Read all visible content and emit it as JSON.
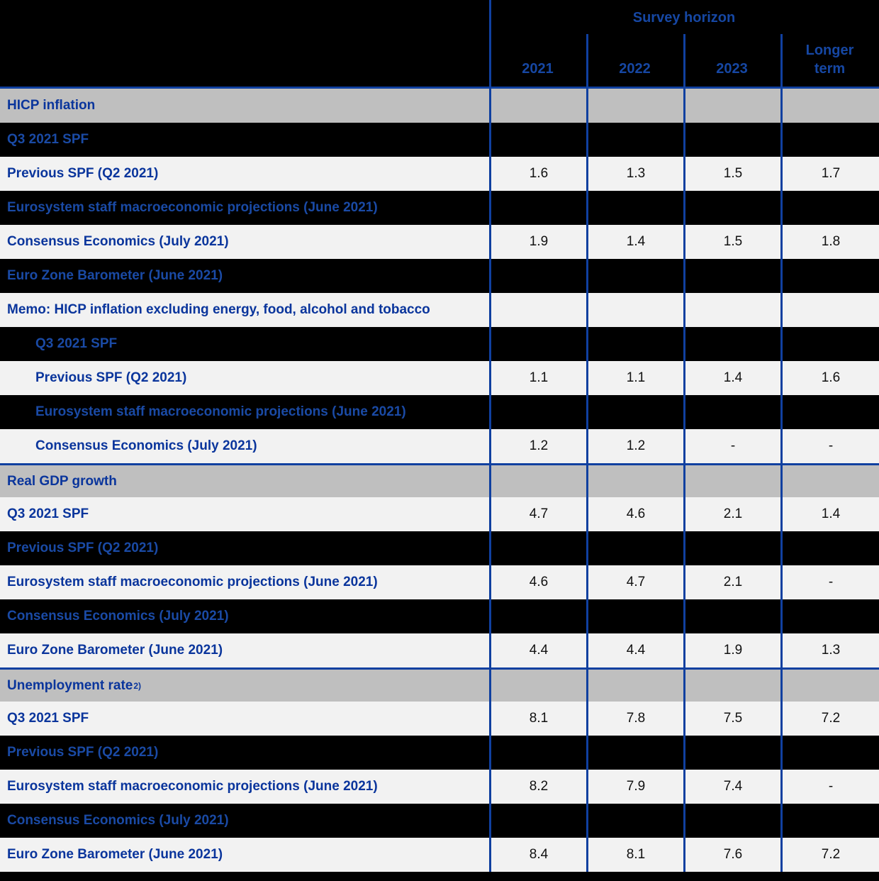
{
  "header": {
    "group_label": "Survey horizon",
    "columns": [
      "2021",
      "2022",
      "2023",
      "Longer\nterm"
    ]
  },
  "rows": [
    {
      "label": "HICP inflation",
      "bg": "gray",
      "section": true,
      "indent": false,
      "values": [
        "",
        "",
        "",
        ""
      ]
    },
    {
      "label": "Q3 2021 SPF",
      "bg": "black",
      "section": false,
      "indent": false,
      "values": [
        "",
        "",
        "",
        ""
      ]
    },
    {
      "label": "Previous SPF (Q2 2021)",
      "bg": "light",
      "section": false,
      "indent": false,
      "values": [
        "1.6",
        "1.3",
        "1.5",
        "1.7"
      ]
    },
    {
      "label": "Eurosystem staff macroeconomic projections (June 2021)",
      "bg": "black",
      "section": false,
      "indent": false,
      "values": [
        "",
        "",
        "",
        ""
      ]
    },
    {
      "label": "Consensus Economics (July 2021)",
      "bg": "light",
      "section": false,
      "indent": false,
      "values": [
        "1.9",
        "1.4",
        "1.5",
        "1.8"
      ]
    },
    {
      "label": "Euro Zone Barometer (June 2021)",
      "bg": "black",
      "section": false,
      "indent": false,
      "values": [
        "",
        "",
        "",
        ""
      ]
    },
    {
      "label": "Memo: HICP inflation excluding energy, food, alcohol and tobacco",
      "bg": "light",
      "section": false,
      "indent": false,
      "values": [
        "",
        "",
        "",
        ""
      ]
    },
    {
      "label": "Q3 2021 SPF",
      "bg": "black",
      "section": false,
      "indent": true,
      "values": [
        "",
        "",
        "",
        ""
      ]
    },
    {
      "label": "Previous SPF (Q2 2021)",
      "bg": "light",
      "section": false,
      "indent": true,
      "values": [
        "1.1",
        "1.1",
        "1.4",
        "1.6"
      ]
    },
    {
      "label": "Eurosystem staff macroeconomic projections (June 2021)",
      "bg": "black",
      "section": false,
      "indent": true,
      "values": [
        "",
        "",
        "",
        ""
      ]
    },
    {
      "label": "Consensus Economics (July 2021)",
      "bg": "light",
      "section": false,
      "indent": true,
      "values": [
        "1.2",
        "1.2",
        "-",
        "-"
      ]
    },
    {
      "label": "Real GDP growth",
      "bg": "gray",
      "section": true,
      "topline": true,
      "indent": false,
      "values": [
        "",
        "",
        "",
        ""
      ]
    },
    {
      "label": "Q3 2021 SPF",
      "bg": "light",
      "section": false,
      "indent": false,
      "values": [
        "4.7",
        "4.6",
        "2.1",
        "1.4"
      ]
    },
    {
      "label": "Previous SPF (Q2 2021)",
      "bg": "black",
      "section": false,
      "indent": false,
      "values": [
        "",
        "",
        "",
        ""
      ]
    },
    {
      "label": "Eurosystem staff macroeconomic projections (June 2021)",
      "bg": "light",
      "section": false,
      "indent": false,
      "values": [
        "4.6",
        "4.7",
        "2.1",
        "-"
      ]
    },
    {
      "label": "Consensus Economics (July 2021)",
      "bg": "black",
      "section": false,
      "indent": false,
      "values": [
        "",
        "",
        "",
        ""
      ]
    },
    {
      "label": "Euro Zone Barometer (June 2021)",
      "bg": "light",
      "section": false,
      "indent": false,
      "values": [
        "4.4",
        "4.4",
        "1.9",
        "1.3"
      ]
    },
    {
      "label": "Unemployment rate",
      "sup": "2)",
      "bg": "gray",
      "section": true,
      "topline": true,
      "indent": false,
      "values": [
        "",
        "",
        "",
        ""
      ]
    },
    {
      "label": "Q3 2021 SPF",
      "bg": "light",
      "section": false,
      "indent": false,
      "values": [
        "8.1",
        "7.8",
        "7.5",
        "7.2"
      ]
    },
    {
      "label": "Previous SPF (Q2 2021)",
      "bg": "black",
      "section": false,
      "indent": false,
      "values": [
        "",
        "",
        "",
        ""
      ]
    },
    {
      "label": "Eurosystem staff macroeconomic projections (June 2021)",
      "bg": "light",
      "section": false,
      "indent": false,
      "values": [
        "8.2",
        "7.9",
        "7.4",
        "-"
      ]
    },
    {
      "label": "Consensus Economics (July 2021)",
      "bg": "black",
      "section": false,
      "indent": false,
      "values": [
        "",
        "",
        "",
        ""
      ]
    },
    {
      "label": "Euro Zone Barometer (June 2021)",
      "bg": "light",
      "section": false,
      "indent": false,
      "values": [
        "8.4",
        "8.1",
        "7.6",
        "7.2"
      ]
    }
  ],
  "colors": {
    "ecb_blue_text": "#0a359c",
    "blue_text_on_black": "#1a4aa5",
    "grid_blue": "#1040a0",
    "row_light": "#f2f2f2",
    "section_gray": "#bfbfbf",
    "row_black": "#000000",
    "value_text": "#111111"
  }
}
